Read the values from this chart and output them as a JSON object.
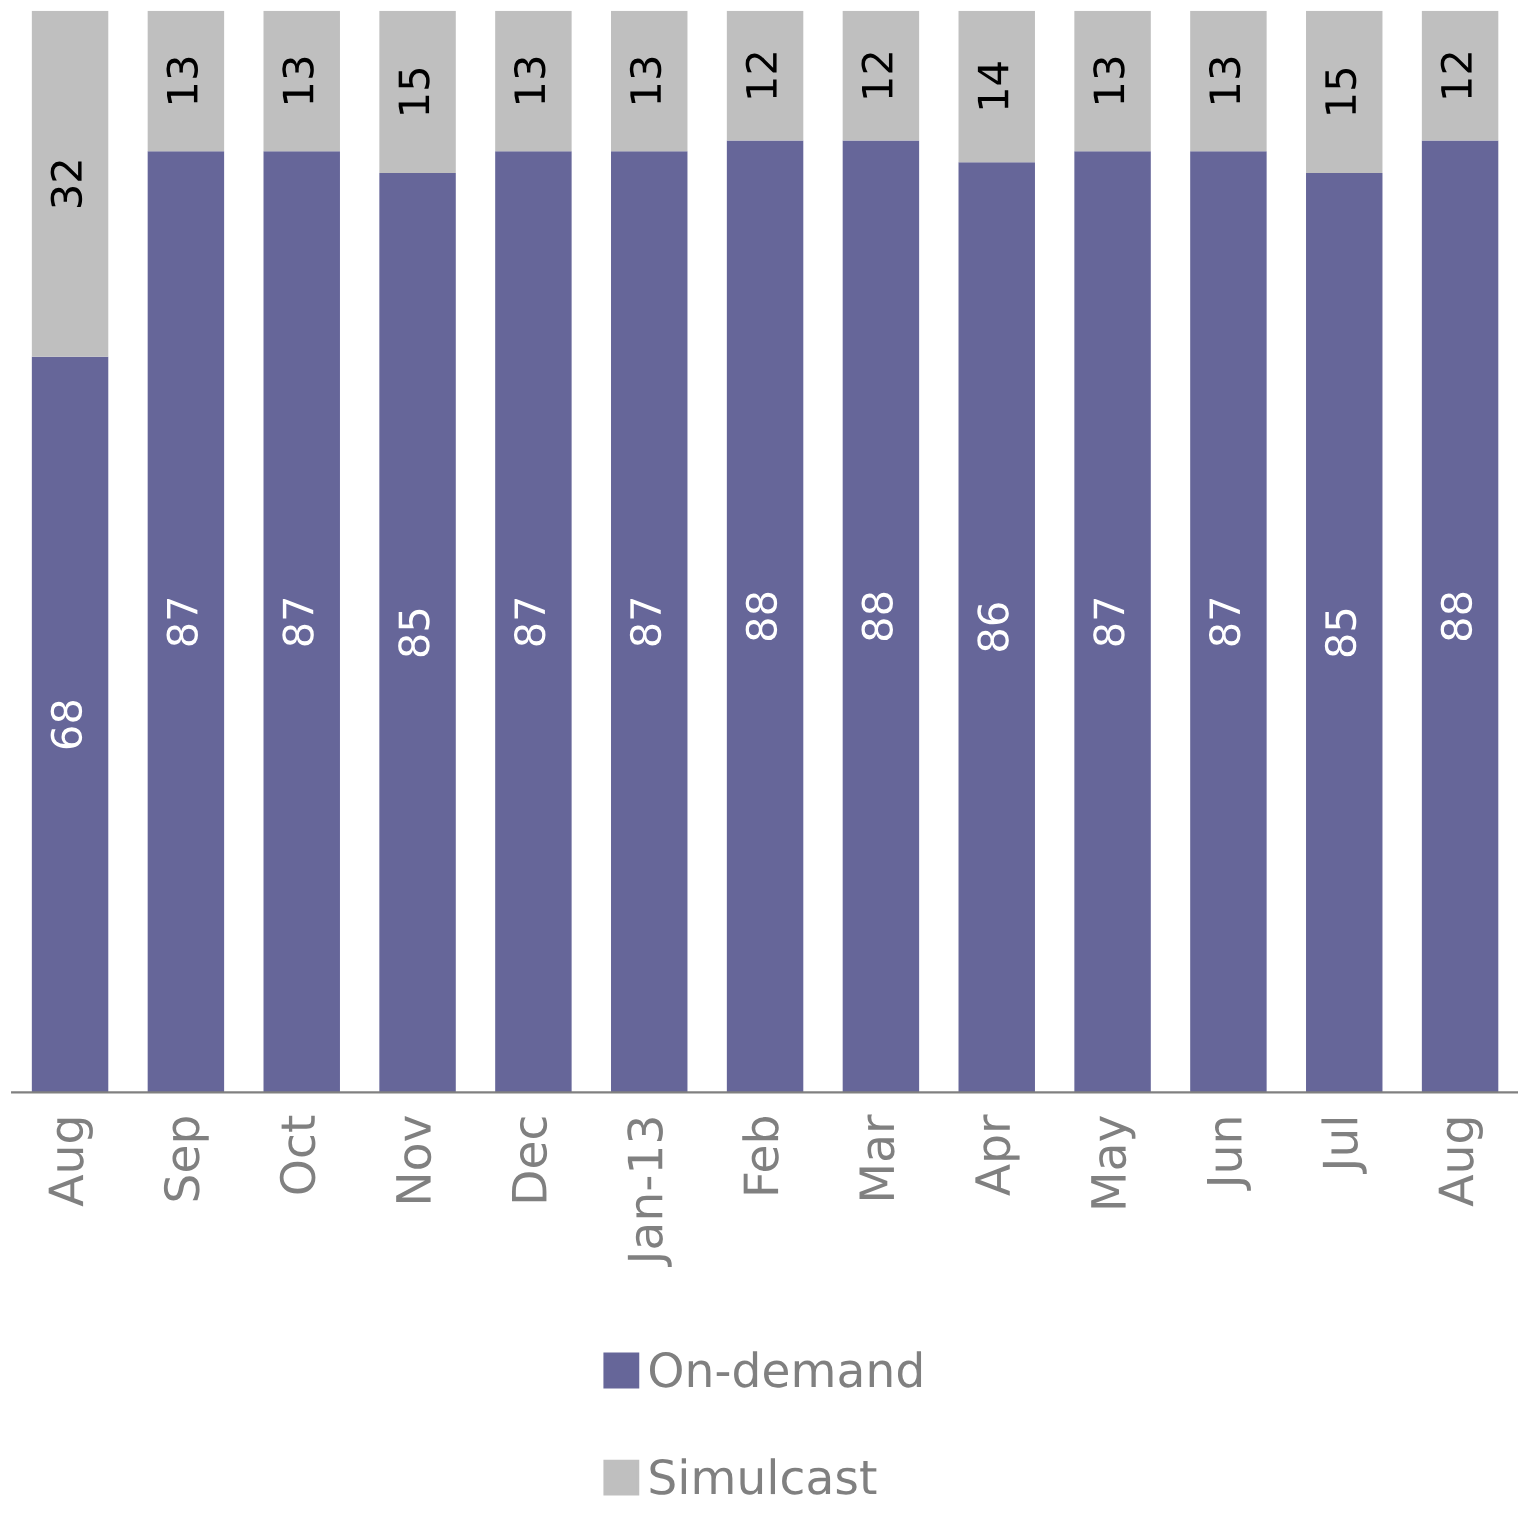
{
  "chart_data": {
    "type": "bar",
    "stacked": true,
    "data_labels": true,
    "legend": "bottom",
    "grid": false,
    "tick_labels": "x",
    "ylim": [
      0,
      100
    ],
    "categories": [
      "Aug",
      "Sep",
      "Oct",
      "Nov",
      "Dec",
      "Jan-13",
      "Feb",
      "Mar",
      "Apr",
      "May",
      "Jun",
      "Jul",
      "Aug"
    ],
    "series": [
      {
        "name": "On-demand",
        "color": "#666699",
        "values": [
          68,
          87,
          87,
          85,
          87,
          87,
          88,
          88,
          86,
          87,
          87,
          85,
          88
        ]
      },
      {
        "name": "Simulcast",
        "color": "#bfbfbf",
        "values": [
          32,
          13,
          13,
          15,
          13,
          13,
          12,
          12,
          14,
          13,
          13,
          15,
          12
        ]
      }
    ]
  }
}
